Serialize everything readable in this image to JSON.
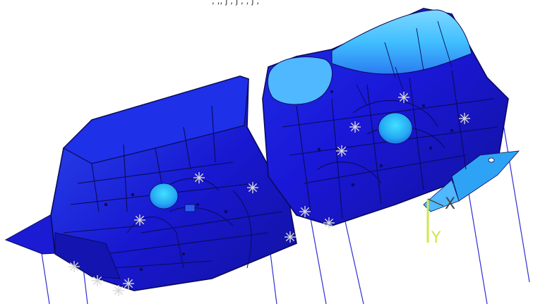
{
  "caption": ", ,, j , j , , j ,",
  "axes": {
    "x_label": "X",
    "y_label": "Y"
  },
  "colors": {
    "background": "#ffffff",
    "mesh_dark": "#1a18d8",
    "mesh_mid": "#2b5cf0",
    "mesh_light": "#4fb8ff",
    "mesh_cyan": "#41e0ff",
    "edge": "#0b0a5a",
    "support_lines": "#2e2ed6",
    "constraint_marker": "#bfbfbf",
    "y_axis": "#cfe84a",
    "x_axis": "#444444"
  },
  "icons": {
    "constraint_marker": "asterisk-constraint-icon",
    "coordinate_triad": "xy-triad-icon"
  }
}
